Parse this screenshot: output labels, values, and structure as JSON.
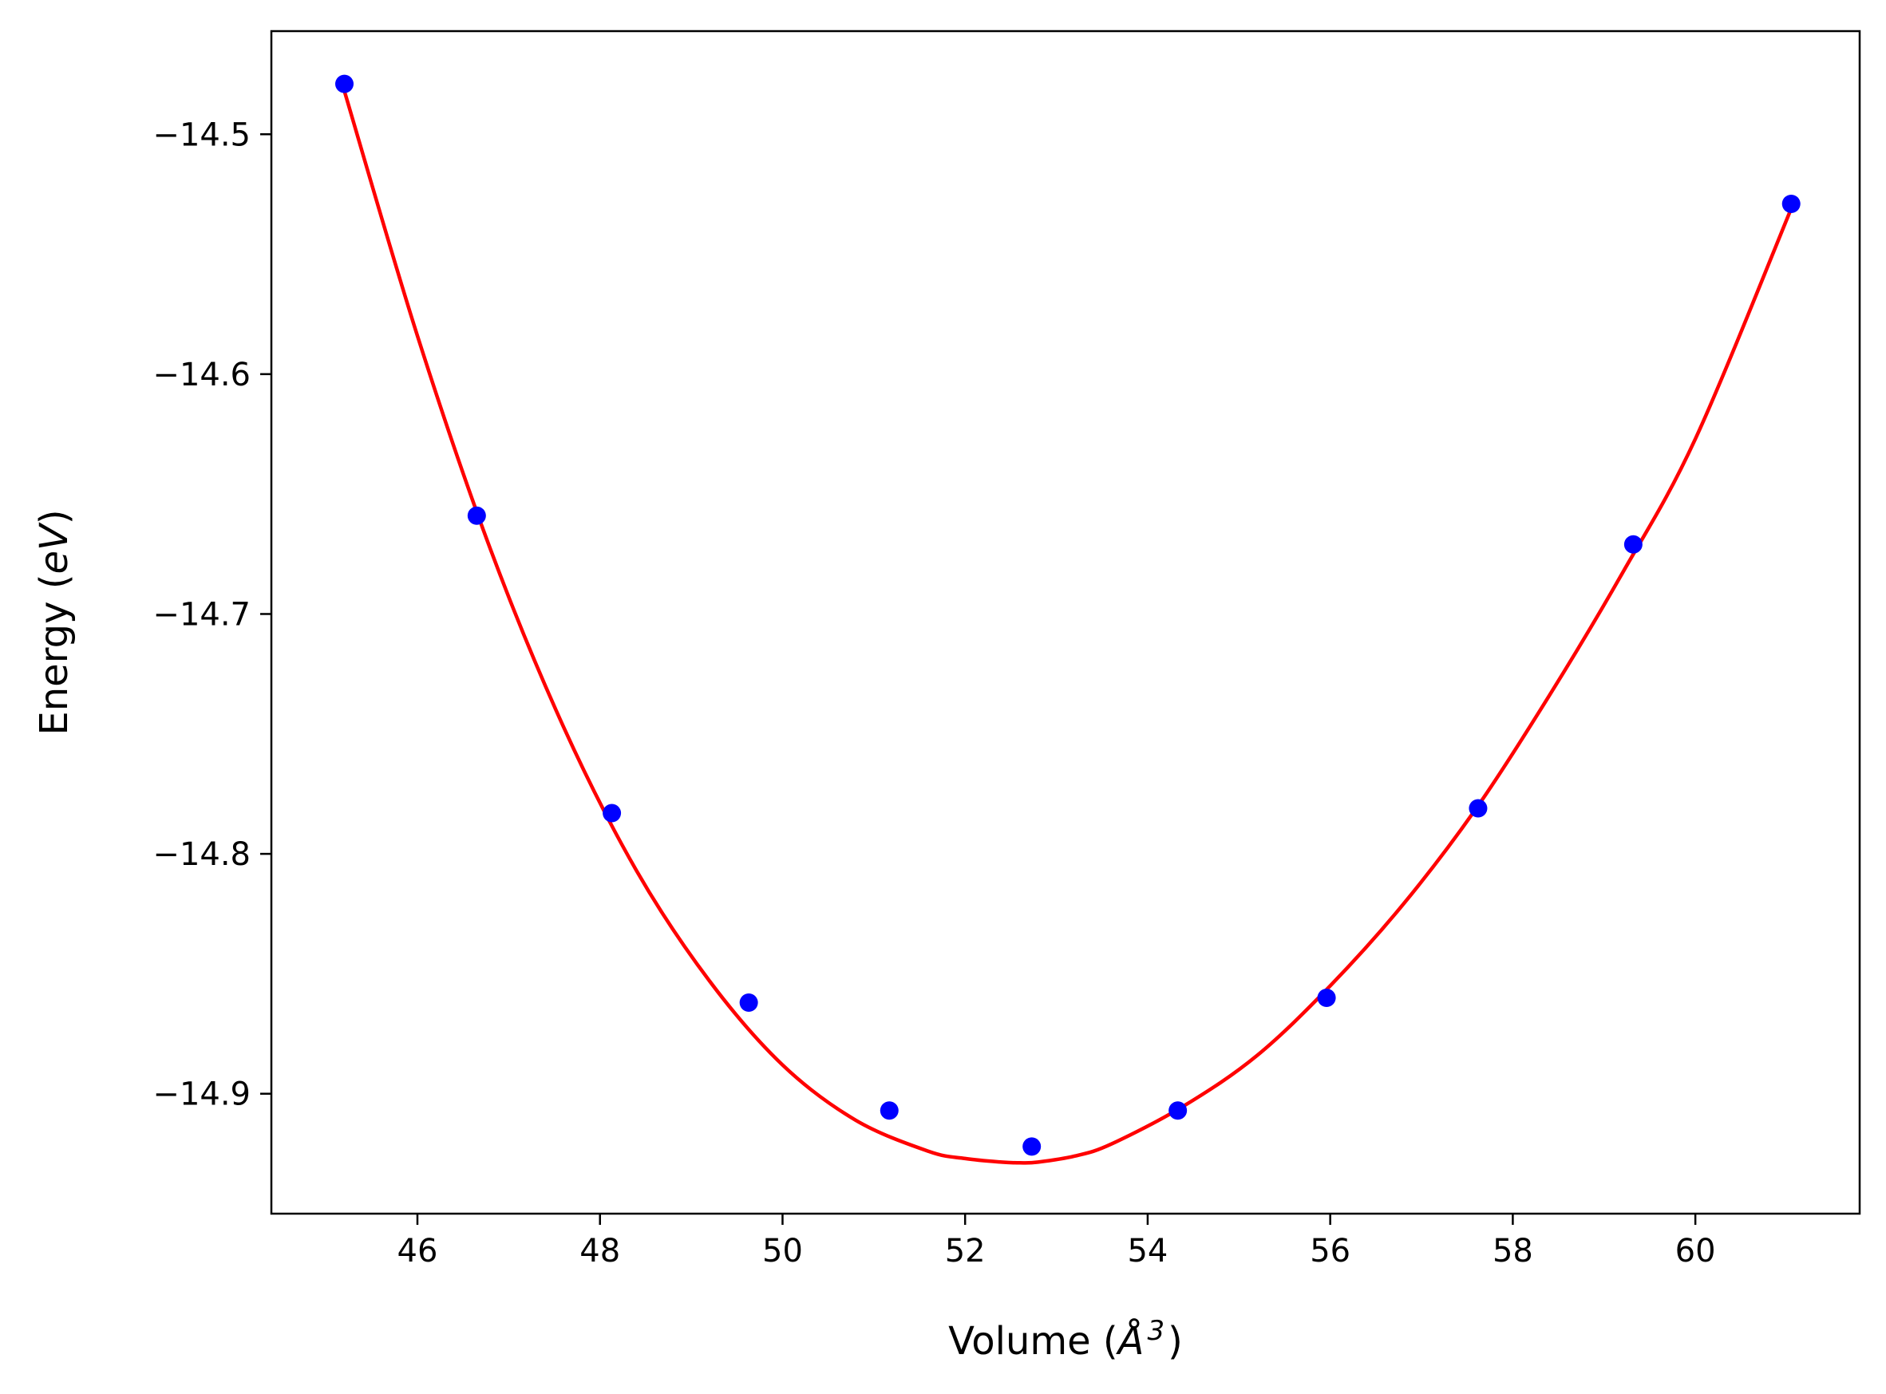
{
  "chart_data": {
    "type": "scatter",
    "title": "",
    "xlabel_main": "Volume (",
    "xlabel_unit": "Å",
    "xlabel_sup": "3",
    "xlabel_end": ")",
    "ylabel_main": "Energy (",
    "ylabel_unit": "eV",
    "ylabel_end": ")",
    "xlim": [
      44.4,
      61.8
    ],
    "ylim": [
      -14.95,
      -14.457
    ],
    "xticks": [
      46,
      48,
      50,
      52,
      54,
      56,
      58,
      60
    ],
    "yticks": [
      -14.9,
      -14.8,
      -14.7,
      -14.6,
      -14.5
    ],
    "xtick_labels": [
      "46",
      "48",
      "50",
      "52",
      "54",
      "56",
      "58",
      "60"
    ],
    "ytick_labels": [
      "−14.9",
      "−14.8",
      "−14.7",
      "−14.6",
      "−14.5"
    ],
    "grid": false,
    "series": [
      {
        "kind": "points",
        "color": "#0000ff",
        "x": [
          45.2,
          46.65,
          48.13,
          49.63,
          51.17,
          52.73,
          54.33,
          55.96,
          57.62,
          59.32,
          61.05
        ],
        "y": [
          -14.479,
          -14.659,
          -14.783,
          -14.862,
          -14.907,
          -14.922,
          -14.907,
          -14.86,
          -14.781,
          -14.671,
          -14.529
        ]
      },
      {
        "kind": "fit-curve",
        "color": "#ff0000",
        "x": [
          45.2,
          46.0,
          46.8,
          47.6,
          48.4,
          49.2,
          50.0,
          50.8,
          51.6,
          52.0,
          52.4,
          52.6,
          52.8,
          53.2,
          53.6,
          54.4,
          55.2,
          56.0,
          56.8,
          57.6,
          58.4,
          59.2,
          60.0,
          61.05
        ],
        "y": [
          -14.482,
          -14.584,
          -14.673,
          -14.747,
          -14.807,
          -14.853,
          -14.888,
          -14.911,
          -14.924,
          -14.927,
          -14.9285,
          -14.9288,
          -14.9285,
          -14.926,
          -14.921,
          -14.905,
          -14.884,
          -14.855,
          -14.821,
          -14.781,
          -14.734,
          -14.683,
          -14.627,
          -14.531
        ]
      }
    ]
  }
}
